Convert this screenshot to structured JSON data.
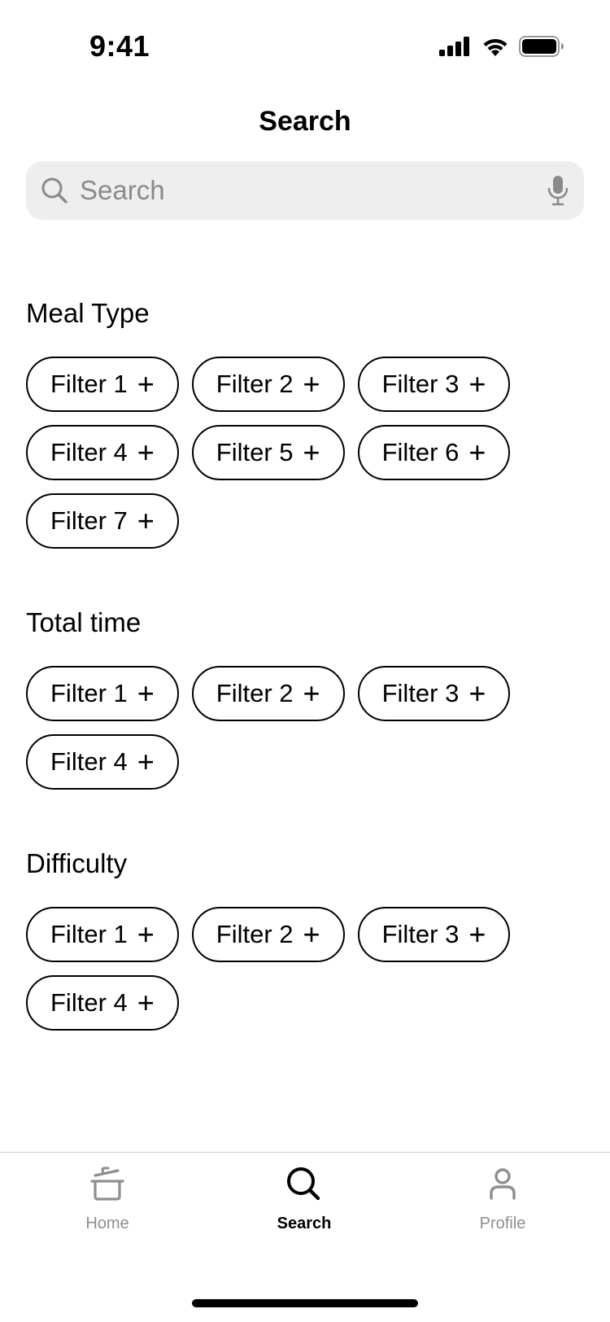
{
  "status_bar": {
    "time": "9:41",
    "icons": [
      "cellular-signal-icon",
      "wifi-icon",
      "battery-icon"
    ]
  },
  "header": {
    "title": "Search"
  },
  "search": {
    "placeholder": "Search",
    "value": "",
    "icons": [
      "search-icon",
      "microphone-icon"
    ]
  },
  "sections": [
    {
      "title": "Meal Type",
      "filters": [
        "Filter 1",
        "Filter 2",
        "Filter 3",
        "Filter 4",
        "Filter 5",
        "Filter 6",
        "Filter 7"
      ]
    },
    {
      "title": "Total time",
      "filters": [
        "Filter 1",
        "Filter 2",
        "Filter 3",
        "Filter 4"
      ]
    },
    {
      "title": "Difficulty",
      "filters": [
        "Filter 1",
        "Filter 2",
        "Filter 3",
        "Filter 4"
      ]
    }
  ],
  "chip_symbol": "+",
  "tab_bar": {
    "tabs": [
      {
        "label": "Home",
        "icon": "pot-icon",
        "active": false
      },
      {
        "label": "Search",
        "icon": "search-icon",
        "active": true
      },
      {
        "label": "Profile",
        "icon": "person-icon",
        "active": false
      }
    ]
  },
  "colors": {
    "accent": "#000000",
    "inactive": "#8e8e93",
    "search_bg": "#eeeeee",
    "placeholder": "#8a8a8e"
  }
}
